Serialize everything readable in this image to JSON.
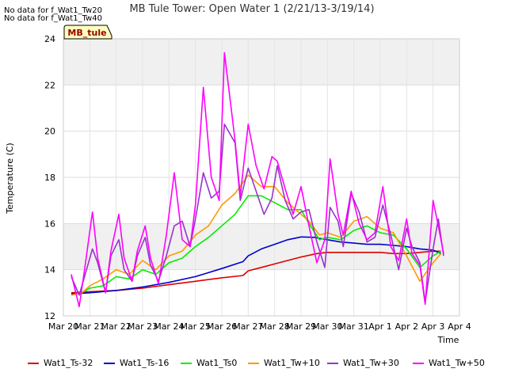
{
  "top_notes": [
    "No data for f_Wat1_Tw20",
    "No data for f_Wat1_Tw40"
  ],
  "chart_data": {
    "type": "line",
    "title": "MB Tule Tower: Open Water 1 (2/21/13-3/19/14)",
    "xlabel": "Time",
    "ylabel": "Temperature (C)",
    "site_label": "MB_tule",
    "xlim": [
      0,
      15
    ],
    "ylim": [
      12,
      24
    ],
    "x_ticks": [
      0,
      1,
      2,
      3,
      4,
      5,
      6,
      7,
      8,
      9,
      10,
      11,
      12,
      13,
      14,
      15
    ],
    "x_tick_labels": [
      "Mar 20",
      "Mar 21",
      "Mar 22",
      "Mar 23",
      "Mar 24",
      "Mar 25",
      "Mar 26",
      "Mar 27",
      "Mar 28",
      "Mar 29",
      "Mar 30",
      "Mar 31",
      "Apr 1",
      "Apr 2",
      "Apr 3",
      "Apr 4"
    ],
    "y_ticks": [
      12,
      14,
      16,
      18,
      20,
      22,
      24
    ],
    "shaded_bands": [
      [
        14,
        16
      ],
      [
        22,
        24
      ]
    ],
    "series": [
      {
        "name": "Wat1_Ts-32",
        "color": "#dd0000",
        "x": [
          0.3,
          1,
          2,
          3,
          4,
          5,
          6,
          6.8,
          7,
          7.5,
          8,
          8.5,
          9,
          9.6,
          10,
          10.5,
          11,
          11.5,
          12,
          12.5,
          13,
          13.5,
          14,
          14.3
        ],
        "y": [
          13.0,
          13.05,
          13.1,
          13.2,
          13.35,
          13.5,
          13.65,
          13.75,
          13.95,
          14.1,
          14.25,
          14.4,
          14.55,
          14.7,
          14.75,
          14.75,
          14.75,
          14.75,
          14.75,
          14.7,
          14.7,
          14.75,
          14.8,
          14.8
        ]
      },
      {
        "name": "Wat1_Ts-16",
        "color": "#0000cc",
        "x": [
          0.3,
          1,
          2,
          3,
          4,
          5,
          6,
          6.8,
          7,
          7.5,
          8,
          8.5,
          9,
          9.5,
          10,
          10.5,
          11,
          11.5,
          12,
          12.5,
          13,
          13.5,
          14,
          14.3
        ],
        "y": [
          12.95,
          13.0,
          13.1,
          13.25,
          13.45,
          13.7,
          14.05,
          14.35,
          14.6,
          14.9,
          15.1,
          15.3,
          15.42,
          15.4,
          15.3,
          15.2,
          15.15,
          15.1,
          15.1,
          15.05,
          15.0,
          14.9,
          14.85,
          14.7
        ]
      },
      {
        "name": "Wat1_Ts0",
        "color": "#00ee00",
        "x": [
          0.3,
          0.7,
          1,
          1.5,
          2,
          2.5,
          3,
          3.5,
          4,
          4.5,
          5,
          5.5,
          6,
          6.5,
          7,
          7.5,
          8,
          8.5,
          9,
          9.3,
          9.7,
          10,
          10.5,
          11,
          11.5,
          12,
          12.5,
          13,
          13.5,
          14,
          14.3
        ],
        "y": [
          12.9,
          13.0,
          13.2,
          13.3,
          13.7,
          13.6,
          14.0,
          13.8,
          14.3,
          14.5,
          15.0,
          15.4,
          15.9,
          16.4,
          17.2,
          17.2,
          16.9,
          16.6,
          16.6,
          16.0,
          15.3,
          15.4,
          15.3,
          15.7,
          15.9,
          15.6,
          15.5,
          14.9,
          14.1,
          14.6,
          14.8
        ]
      },
      {
        "name": "Wat1_Tw+10",
        "color": "#ff9900",
        "x": [
          0.3,
          0.7,
          1,
          1.5,
          2,
          2.5,
          3,
          3.5,
          4,
          4.5,
          5,
          5.5,
          6,
          6.5,
          7,
          7.5,
          8,
          8.5,
          9,
          9.3,
          9.7,
          10,
          10.5,
          11,
          11.5,
          12,
          12.5,
          13,
          13.5,
          14,
          14.3
        ],
        "y": [
          12.9,
          13.0,
          13.3,
          13.6,
          14.0,
          13.8,
          14.4,
          14.0,
          14.6,
          14.8,
          15.5,
          15.9,
          16.8,
          17.3,
          18.1,
          17.6,
          17.6,
          16.9,
          16.4,
          16.1,
          15.5,
          15.6,
          15.4,
          16.1,
          16.3,
          15.8,
          15.6,
          14.6,
          13.5,
          14.3,
          14.7
        ]
      },
      {
        "name": "Wat1_Tw+30",
        "color": "#9933cc",
        "x": [
          0.3,
          0.6,
          0.8,
          1.1,
          1.3,
          1.6,
          1.8,
          2.1,
          2.3,
          2.6,
          2.8,
          3.1,
          3.3,
          3.6,
          3.9,
          4.2,
          4.5,
          4.8,
          5.0,
          5.3,
          5.6,
          5.9,
          6.1,
          6.5,
          6.7,
          7.0,
          7.3,
          7.6,
          7.9,
          8.1,
          8.4,
          8.7,
          9.0,
          9.3,
          9.6,
          9.9,
          10.1,
          10.4,
          10.6,
          10.9,
          11.2,
          11.5,
          11.8,
          12.1,
          12.4,
          12.7,
          13.0,
          13.2,
          13.5,
          13.7,
          14.0,
          14.2,
          14.4
        ],
        "y": [
          13.7,
          12.9,
          13.7,
          14.9,
          14.3,
          13.0,
          14.6,
          15.3,
          14.0,
          13.5,
          14.6,
          15.4,
          14.2,
          13.5,
          14.6,
          15.9,
          16.1,
          15.0,
          16.2,
          18.2,
          17.1,
          17.4,
          20.3,
          19.5,
          17.0,
          18.4,
          17.4,
          16.4,
          17.1,
          18.5,
          17.0,
          16.2,
          16.5,
          16.6,
          15.2,
          14.1,
          16.7,
          16.1,
          15.0,
          17.3,
          16.5,
          15.2,
          15.4,
          16.8,
          15.5,
          14.0,
          15.8,
          15.0,
          14.3,
          12.6,
          14.9,
          16.2,
          14.6
        ]
      },
      {
        "name": "Wat1_Tw+50",
        "color": "#ff00ff",
        "x": [
          0.3,
          0.6,
          0.8,
          1.1,
          1.3,
          1.6,
          1.8,
          2.1,
          2.3,
          2.6,
          2.8,
          3.1,
          3.3,
          3.6,
          3.9,
          4.2,
          4.5,
          4.8,
          5.0,
          5.3,
          5.6,
          5.9,
          6.1,
          6.5,
          6.7,
          7.0,
          7.3,
          7.6,
          7.9,
          8.1,
          8.4,
          8.7,
          9.0,
          9.3,
          9.6,
          9.9,
          10.1,
          10.4,
          10.6,
          10.9,
          11.2,
          11.5,
          11.8,
          12.1,
          12.4,
          12.7,
          13.0,
          13.2,
          13.5,
          13.7,
          14.0,
          14.2,
          14.4
        ],
        "y": [
          13.8,
          12.4,
          14.0,
          16.5,
          14.5,
          13.0,
          14.8,
          16.4,
          14.5,
          13.5,
          14.8,
          15.9,
          14.5,
          13.4,
          15.5,
          18.2,
          15.3,
          15.0,
          16.8,
          21.9,
          18.0,
          17.0,
          23.4,
          19.6,
          17.2,
          20.3,
          18.5,
          17.5,
          18.9,
          18.7,
          17.5,
          16.4,
          17.6,
          15.9,
          14.3,
          15.3,
          18.8,
          16.4,
          15.5,
          17.4,
          16.0,
          15.3,
          15.6,
          17.6,
          15.0,
          14.4,
          16.2,
          14.7,
          14.2,
          12.5,
          17.0,
          15.9,
          14.7
        ]
      }
    ]
  }
}
